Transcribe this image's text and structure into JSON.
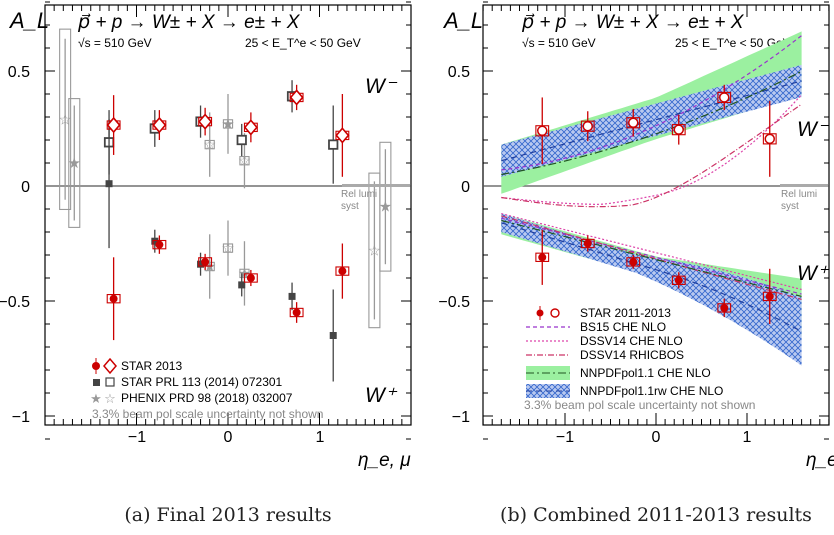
{
  "chart_data": [
    {
      "type": "scatter",
      "title": "p⃗ + p → W± + X → e± + X",
      "subtitle_left": "√s = 510 GeV",
      "subtitle_right": "25 < E_T^e < 50 GeV",
      "ylabel": "A_L",
      "xlabel": "η_e, μ",
      "xlim": [
        -2.0,
        2.0
      ],
      "ylim": [
        -1.1,
        0.8
      ],
      "xticks": [
        "−1",
        "0",
        "1"
      ],
      "yticks": [
        "0.5",
        "0",
        "−0.5",
        "−1"
      ],
      "caption": "(a) Final 2013 results",
      "annotations": {
        "w_minus": "W⁻",
        "w_plus": "W⁺",
        "rel_lumi": [
          "Rel lumi",
          "syst"
        ]
      },
      "legend": [
        {
          "label": "STAR 2013",
          "color": "#cc0000"
        },
        {
          "label": "STAR PRL 113 (2014) 072301",
          "color": "#444444"
        },
        {
          "label": "PHENIX PRD 98 (2018) 032007",
          "color": "#999999"
        }
      ],
      "legend_note": "3.3% beam pol scale uncertainty not shown",
      "series": [
        {
          "name": "STAR 2013",
          "color": "#cc0000",
          "W_minus": [
            {
              "x": -1.25,
              "y": 0.265,
              "err": 0.13
            },
            {
              "x": -0.75,
              "y": 0.265,
              "err": 0.065
            },
            {
              "x": -0.25,
              "y": 0.28,
              "err": 0.06
            },
            {
              "x": 0.25,
              "y": 0.255,
              "err": 0.065
            },
            {
              "x": 0.75,
              "y": 0.385,
              "err": 0.055
            },
            {
              "x": 1.25,
              "y": 0.22,
              "err": 0.18
            }
          ],
          "W_plus": [
            {
              "x": -1.25,
              "y": -0.49,
              "err": 0.18
            },
            {
              "x": -0.75,
              "y": -0.255,
              "err": 0.04
            },
            {
              "x": -0.25,
              "y": -0.33,
              "err": 0.035
            },
            {
              "x": 0.25,
              "y": -0.4,
              "err": 0.035
            },
            {
              "x": 0.75,
              "y": -0.55,
              "err": 0.045
            },
            {
              "x": 1.25,
              "y": -0.37,
              "err": 0.12
            }
          ]
        },
        {
          "name": "STAR PRL 113 (2014) 072301",
          "color": "#444444",
          "W_minus": [
            {
              "x": -1.3,
              "y": 0.19,
              "err": 0.14
            },
            {
              "x": -0.8,
              "y": 0.25,
              "err": 0.08
            },
            {
              "x": -0.3,
              "y": 0.28,
              "err": 0.07
            },
            {
              "x": 0.15,
              "y": 0.2,
              "err": 0.07
            },
            {
              "x": 0.7,
              "y": 0.39,
              "err": 0.07
            },
            {
              "x": 1.15,
              "y": 0.18,
              "err": 0.17
            }
          ],
          "W_plus": [
            {
              "x": -1.3,
              "y": 0.01,
              "err": 0.28
            },
            {
              "x": -0.8,
              "y": -0.24,
              "err": 0.05
            },
            {
              "x": -0.3,
              "y": -0.34,
              "err": 0.05
            },
            {
              "x": 0.15,
              "y": -0.43,
              "err": 0.05
            },
            {
              "x": 0.7,
              "y": -0.48,
              "err": 0.06
            },
            {
              "x": 1.15,
              "y": -0.65,
              "err": 0.2
            }
          ]
        },
        {
          "name": "PHENIX PRD 98 (2018) 032007",
          "color": "#999999",
          "W_minus": [
            {
              "x": -1.78,
              "y": 0.29,
              "err": 0.35
            },
            {
              "x": -1.68,
              "y": 0.1,
              "err": 0.25
            },
            {
              "x": -0.2,
              "y": 0.18,
              "err": 0.14
            },
            {
              "x": 0.0,
              "y": 0.27,
              "err": 0.13
            },
            {
              "x": 0.18,
              "y": 0.11,
              "err": 0.12
            }
          ],
          "W_plus": [
            {
              "x": -0.2,
              "y": -0.35,
              "err": 0.14
            },
            {
              "x": 0.0,
              "y": -0.27,
              "err": 0.12
            },
            {
              "x": 0.18,
              "y": -0.38,
              "err": 0.14
            },
            {
              "x": 1.6,
              "y": -0.28,
              "err": 0.3
            },
            {
              "x": 1.72,
              "y": -0.09,
              "err": 0.25
            }
          ]
        }
      ]
    },
    {
      "type": "scatter",
      "title": "p⃗ + p → W± + X → e± + X",
      "subtitle_left": "√s = 510 GeV",
      "subtitle_right": "25 < E_T^e < 50 GeV",
      "ylabel": "A_L",
      "xlabel": "η_e",
      "xlim": [
        -1.9,
        1.9
      ],
      "ylim": [
        -1.1,
        0.8
      ],
      "xticks": [
        "−1",
        "0",
        "1"
      ],
      "yticks": [
        "0.5",
        "0",
        "−0.5",
        "−1"
      ],
      "caption": "(b) Combined 2011-2013 results",
      "annotations": {
        "w_minus": "W⁻",
        "w_plus": "W⁺",
        "rel_lumi": [
          "Rel lumi",
          "syst"
        ]
      },
      "legend": [
        {
          "label": "STAR 2011-2013",
          "color": "#cc0000"
        },
        {
          "label": "BS15 CHE NLO",
          "color": "#9933cc"
        },
        {
          "label": "DSSV14 CHE NLO",
          "color": "#dd44aa"
        },
        {
          "label": "DSSV14 RHICBOS",
          "color": "#cc3366"
        },
        {
          "label": "NNPDFpol1.1 CHE NLO",
          "color": "#66ee77"
        },
        {
          "label": "NNPDFpol1.1rw CHE NLO",
          "color": "#3366cc"
        }
      ],
      "legend_note": "3.3% beam pol scale uncertainty not shown",
      "series": [
        {
          "name": "STAR 2011-2013",
          "color": "#cc0000",
          "W_minus": [
            {
              "x": -1.25,
              "y": 0.24,
              "err": 0.145
            },
            {
              "x": -0.75,
              "y": 0.26,
              "err": 0.065
            },
            {
              "x": -0.25,
              "y": 0.275,
              "err": 0.06
            },
            {
              "x": 0.25,
              "y": 0.245,
              "err": 0.065
            },
            {
              "x": 0.75,
              "y": 0.385,
              "err": 0.055
            },
            {
              "x": 1.25,
              "y": 0.205,
              "err": 0.165
            }
          ],
          "W_plus": [
            {
              "x": -1.25,
              "y": -0.31,
              "err": 0.12
            },
            {
              "x": -0.75,
              "y": -0.25,
              "err": 0.035
            },
            {
              "x": -0.25,
              "y": -0.33,
              "err": 0.03
            },
            {
              "x": 0.25,
              "y": -0.41,
              "err": 0.035
            },
            {
              "x": 0.75,
              "y": -0.53,
              "err": 0.04
            },
            {
              "x": 1.25,
              "y": -0.48,
              "err": 0.12
            }
          ]
        }
      ]
    }
  ]
}
